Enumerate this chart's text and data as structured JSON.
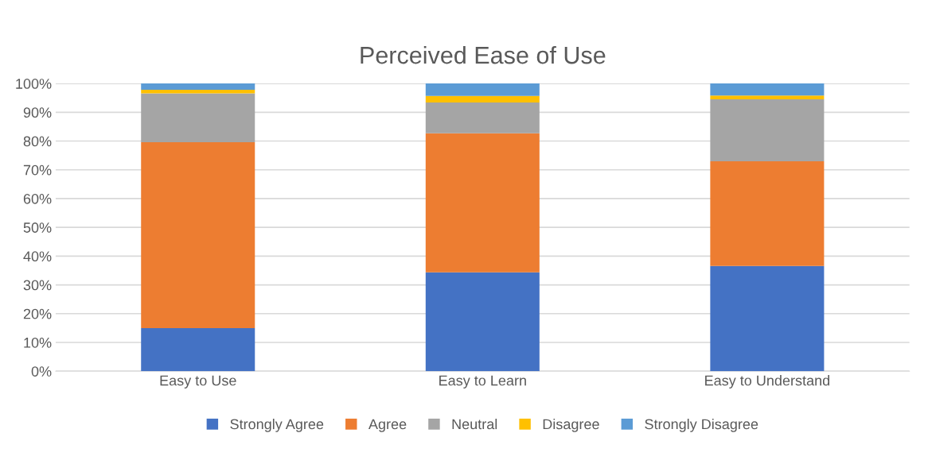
{
  "chart_data": {
    "type": "bar",
    "stacked": true,
    "title": "Perceived Ease of Use",
    "categories": [
      "Easy to Use",
      "Easy to Learn",
      "Easy to Understand"
    ],
    "series": [
      {
        "name": "Strongly Agree",
        "color": "#4472c4",
        "values": [
          15,
          34.4,
          36.6
        ]
      },
      {
        "name": "Agree",
        "color": "#ed7d31",
        "values": [
          64.6,
          48.3,
          36.4
        ]
      },
      {
        "name": "Neutral",
        "color": "#a5a5a5",
        "values": [
          17,
          10.7,
          21.5
        ]
      },
      {
        "name": "Disagree",
        "color": "#ffc000",
        "values": [
          1.2,
          2.3,
          1.3
        ]
      },
      {
        "name": "Strongly Disagree",
        "color": "#5b9bd5",
        "values": [
          2.2,
          4.3,
          4.2
        ]
      }
    ],
    "ylim": [
      0,
      100
    ],
    "yticks": [
      {
        "value": 0,
        "label": "0%"
      },
      {
        "value": 10,
        "label": "10%"
      },
      {
        "value": 20,
        "label": "20%"
      },
      {
        "value": 30,
        "label": "30%"
      },
      {
        "value": 40,
        "label": "40%"
      },
      {
        "value": 50,
        "label": "50%"
      },
      {
        "value": 60,
        "label": "60%"
      },
      {
        "value": 70,
        "label": "70%"
      },
      {
        "value": 80,
        "label": "80%"
      },
      {
        "value": 90,
        "label": "90%"
      },
      {
        "value": 100,
        "label": "100%"
      }
    ],
    "grid": "y",
    "legend": "bottom"
  }
}
